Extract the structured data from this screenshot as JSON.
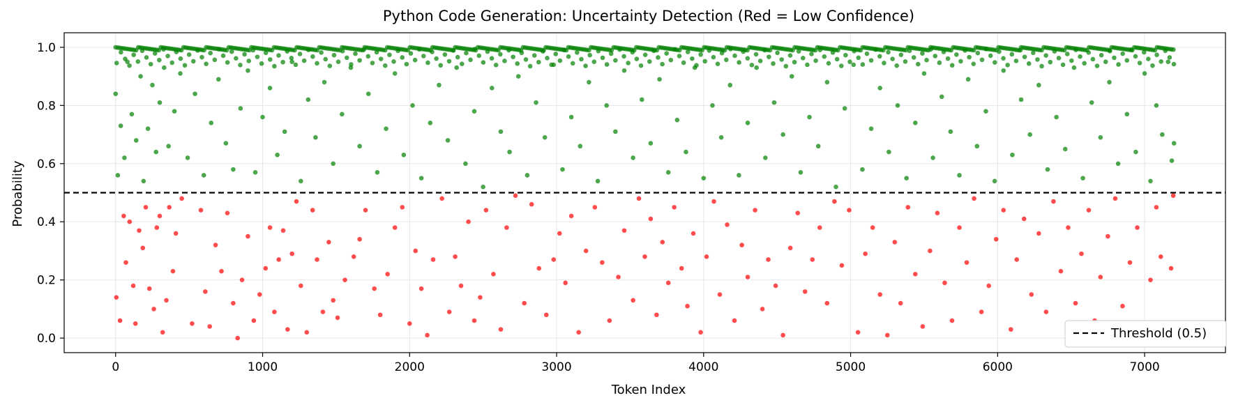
{
  "chart_data": {
    "type": "scatter",
    "title": "Python Code Generation: Uncertainty Detection (Red = Low Confidence)",
    "xlabel": "Token Index",
    "ylabel": "Probability",
    "xlim": [
      -350,
      7550
    ],
    "ylim": [
      -0.05,
      1.05
    ],
    "xticks": [
      0,
      1000,
      2000,
      3000,
      4000,
      5000,
      6000,
      7000
    ],
    "xtick_labels": [
      "0",
      "1000",
      "2000",
      "3000",
      "4000",
      "5000",
      "6000",
      "7000"
    ],
    "yticks": [
      0.0,
      0.2,
      0.4,
      0.6,
      0.8,
      1.0
    ],
    "ytick_labels": [
      "0.0",
      "0.2",
      "0.4",
      "0.6",
      "0.8",
      "1.0"
    ],
    "grid": true,
    "threshold": 0.5,
    "legend": {
      "placement": "lower-right",
      "entries": [
        "Threshold (0.5)"
      ]
    },
    "colors": {
      "high": "#008000",
      "low": "#ff0000",
      "threshold": "#000000"
    },
    "series": [
      {
        "color": "#ff0000",
        "points": [
          [
            5,
            0.14
          ],
          [
            30,
            0.06
          ],
          [
            55,
            0.42
          ],
          [
            70,
            0.26
          ],
          [
            95,
            0.4
          ],
          [
            120,
            0.18
          ],
          [
            135,
            0.05
          ],
          [
            160,
            0.37
          ],
          [
            185,
            0.31
          ],
          [
            205,
            0.45
          ],
          [
            230,
            0.17
          ],
          [
            260,
            0.1
          ],
          [
            280,
            0.38
          ],
          [
            300,
            0.42
          ],
          [
            320,
            0.02
          ],
          [
            345,
            0.13
          ],
          [
            365,
            0.45
          ],
          [
            390,
            0.23
          ],
          [
            410,
            0.36
          ],
          [
            450,
            0.48
          ],
          [
            520,
            0.05
          ],
          [
            580,
            0.44
          ],
          [
            610,
            0.16
          ],
          [
            640,
            0.04
          ],
          [
            680,
            0.32
          ],
          [
            720,
            0.23
          ],
          [
            760,
            0.43
          ],
          [
            800,
            0.12
          ],
          [
            830,
            0.0
          ],
          [
            860,
            0.2
          ],
          [
            900,
            0.35
          ],
          [
            940,
            0.06
          ],
          [
            980,
            0.15
          ],
          [
            1020,
            0.24
          ],
          [
            1050,
            0.38
          ],
          [
            1080,
            0.09
          ],
          [
            1110,
            0.27
          ],
          [
            1140,
            0.37
          ],
          [
            1170,
            0.03
          ],
          [
            1200,
            0.29
          ],
          [
            1230,
            0.47
          ],
          [
            1260,
            0.18
          ],
          [
            1300,
            0.02
          ],
          [
            1340,
            0.44
          ],
          [
            1370,
            0.27
          ],
          [
            1410,
            0.09
          ],
          [
            1450,
            0.33
          ],
          [
            1480,
            0.13
          ],
          [
            1510,
            0.07
          ],
          [
            1560,
            0.2
          ],
          [
            1620,
            0.28
          ],
          [
            1660,
            0.34
          ],
          [
            1700,
            0.44
          ],
          [
            1760,
            0.17
          ],
          [
            1800,
            0.08
          ],
          [
            1850,
            0.22
          ],
          [
            1900,
            0.38
          ],
          [
            1950,
            0.45
          ],
          [
            2000,
            0.05
          ],
          [
            2040,
            0.3
          ],
          [
            2080,
            0.17
          ],
          [
            2120,
            0.01
          ],
          [
            2160,
            0.27
          ],
          [
            2220,
            0.48
          ],
          [
            2270,
            0.09
          ],
          [
            2310,
            0.28
          ],
          [
            2350,
            0.18
          ],
          [
            2400,
            0.4
          ],
          [
            2440,
            0.06
          ],
          [
            2480,
            0.14
          ],
          [
            2520,
            0.44
          ],
          [
            2570,
            0.22
          ],
          [
            2620,
            0.03
          ],
          [
            2660,
            0.38
          ],
          [
            2720,
            0.49
          ],
          [
            2780,
            0.12
          ],
          [
            2830,
            0.46
          ],
          [
            2880,
            0.24
          ],
          [
            2930,
            0.08
          ],
          [
            2980,
            0.27
          ],
          [
            3020,
            0.36
          ],
          [
            3060,
            0.19
          ],
          [
            3100,
            0.42
          ],
          [
            3150,
            0.02
          ],
          [
            3200,
            0.3
          ],
          [
            3260,
            0.45
          ],
          [
            3310,
            0.26
          ],
          [
            3360,
            0.06
          ],
          [
            3420,
            0.21
          ],
          [
            3460,
            0.37
          ],
          [
            3520,
            0.13
          ],
          [
            3560,
            0.48
          ],
          [
            3600,
            0.28
          ],
          [
            3640,
            0.41
          ],
          [
            3680,
            0.08
          ],
          [
            3720,
            0.33
          ],
          [
            3760,
            0.19
          ],
          [
            3800,
            0.45
          ],
          [
            3850,
            0.24
          ],
          [
            3890,
            0.11
          ],
          [
            3930,
            0.36
          ],
          [
            3980,
            0.02
          ],
          [
            4020,
            0.28
          ],
          [
            4070,
            0.47
          ],
          [
            4110,
            0.15
          ],
          [
            4160,
            0.39
          ],
          [
            4210,
            0.06
          ],
          [
            4260,
            0.32
          ],
          [
            4300,
            0.21
          ],
          [
            4350,
            0.44
          ],
          [
            4400,
            0.1
          ],
          [
            4440,
            0.27
          ],
          [
            4490,
            0.18
          ],
          [
            4540,
            0.01
          ],
          [
            4590,
            0.31
          ],
          [
            4640,
            0.43
          ],
          [
            4690,
            0.16
          ],
          [
            4740,
            0.27
          ],
          [
            4790,
            0.38
          ],
          [
            4840,
            0.12
          ],
          [
            4890,
            0.47
          ],
          [
            4940,
            0.25
          ],
          [
            4990,
            0.44
          ],
          [
            5050,
            0.02
          ],
          [
            5100,
            0.29
          ],
          [
            5150,
            0.38
          ],
          [
            5200,
            0.15
          ],
          [
            5250,
            0.01
          ],
          [
            5300,
            0.33
          ],
          [
            5340,
            0.12
          ],
          [
            5390,
            0.45
          ],
          [
            5440,
            0.22
          ],
          [
            5490,
            0.04
          ],
          [
            5540,
            0.3
          ],
          [
            5590,
            0.43
          ],
          [
            5640,
            0.19
          ],
          [
            5690,
            0.06
          ],
          [
            5740,
            0.38
          ],
          [
            5790,
            0.26
          ],
          [
            5840,
            0.48
          ],
          [
            5890,
            0.09
          ],
          [
            5940,
            0.18
          ],
          [
            5990,
            0.34
          ],
          [
            6040,
            0.44
          ],
          [
            6090,
            0.03
          ],
          [
            6130,
            0.27
          ],
          [
            6180,
            0.41
          ],
          [
            6230,
            0.15
          ],
          [
            6280,
            0.36
          ],
          [
            6330,
            0.09
          ],
          [
            6380,
            0.47
          ],
          [
            6430,
            0.23
          ],
          [
            6480,
            0.38
          ],
          [
            6530,
            0.12
          ],
          [
            6570,
            0.29
          ],
          [
            6620,
            0.44
          ],
          [
            6660,
            0.06
          ],
          [
            6700,
            0.21
          ],
          [
            6750,
            0.35
          ],
          [
            6800,
            0.48
          ],
          [
            6850,
            0.11
          ],
          [
            6900,
            0.26
          ],
          [
            6950,
            0.38
          ],
          [
            7000,
            0.04
          ],
          [
            7040,
            0.2
          ],
          [
            7080,
            0.45
          ],
          [
            7110,
            0.28
          ],
          [
            7150,
            0.01
          ],
          [
            7180,
            0.24
          ],
          [
            7195,
            0.49
          ]
        ]
      },
      {
        "color": "#008000",
        "points": [
          [
            0,
            0.84
          ],
          [
            15,
            0.56
          ],
          [
            35,
            0.73
          ],
          [
            60,
            0.62
          ],
          [
            80,
            0.95
          ],
          [
            110,
            0.77
          ],
          [
            140,
            0.68
          ],
          [
            170,
            0.9
          ],
          [
            190,
            0.54
          ],
          [
            220,
            0.72
          ],
          [
            250,
            0.87
          ],
          [
            275,
            0.64
          ],
          [
            300,
            0.81
          ],
          [
            330,
            0.93
          ],
          [
            360,
            0.66
          ],
          [
            400,
            0.78
          ],
          [
            440,
            0.91
          ],
          [
            490,
            0.62
          ],
          [
            540,
            0.84
          ],
          [
            600,
            0.56
          ],
          [
            650,
            0.74
          ],
          [
            700,
            0.89
          ],
          [
            750,
            0.67
          ],
          [
            800,
            0.58
          ],
          [
            850,
            0.79
          ],
          [
            900,
            0.92
          ],
          [
            950,
            0.57
          ],
          [
            1000,
            0.76
          ],
          [
            1050,
            0.86
          ],
          [
            1100,
            0.63
          ],
          [
            1150,
            0.71
          ],
          [
            1200,
            0.95
          ],
          [
            1260,
            0.54
          ],
          [
            1310,
            0.82
          ],
          [
            1360,
            0.69
          ],
          [
            1420,
            0.88
          ],
          [
            1480,
            0.6
          ],
          [
            1540,
            0.77
          ],
          [
            1600,
            0.93
          ],
          [
            1660,
            0.66
          ],
          [
            1720,
            0.84
          ],
          [
            1780,
            0.57
          ],
          [
            1840,
            0.72
          ],
          [
            1900,
            0.91
          ],
          [
            1960,
            0.63
          ],
          [
            2020,
            0.8
          ],
          [
            2080,
            0.55
          ],
          [
            2140,
            0.74
          ],
          [
            2200,
            0.87
          ],
          [
            2260,
            0.68
          ],
          [
            2320,
            0.93
          ],
          [
            2380,
            0.6
          ],
          [
            2440,
            0.78
          ],
          [
            2500,
            0.52
          ],
          [
            2560,
            0.86
          ],
          [
            2620,
            0.71
          ],
          [
            2680,
            0.64
          ],
          [
            2740,
            0.9
          ],
          [
            2800,
            0.56
          ],
          [
            2860,
            0.81
          ],
          [
            2920,
            0.69
          ],
          [
            2980,
            0.94
          ],
          [
            3040,
            0.58
          ],
          [
            3100,
            0.76
          ],
          [
            3160,
            0.66
          ],
          [
            3220,
            0.88
          ],
          [
            3280,
            0.54
          ],
          [
            3340,
            0.8
          ],
          [
            3400,
            0.71
          ],
          [
            3460,
            0.92
          ],
          [
            3520,
            0.62
          ],
          [
            3580,
            0.82
          ],
          [
            3640,
            0.67
          ],
          [
            3700,
            0.89
          ],
          [
            3760,
            0.57
          ],
          [
            3820,
            0.75
          ],
          [
            3880,
            0.64
          ],
          [
            3940,
            0.93
          ],
          [
            4000,
            0.55
          ],
          [
            4060,
            0.8
          ],
          [
            4120,
            0.69
          ],
          [
            4180,
            0.87
          ],
          [
            4240,
            0.56
          ],
          [
            4300,
            0.74
          ],
          [
            4360,
            0.93
          ],
          [
            4420,
            0.62
          ],
          [
            4480,
            0.81
          ],
          [
            4540,
            0.7
          ],
          [
            4600,
            0.9
          ],
          [
            4660,
            0.57
          ],
          [
            4720,
            0.76
          ],
          [
            4780,
            0.66
          ],
          [
            4840,
            0.88
          ],
          [
            4900,
            0.52
          ],
          [
            4960,
            0.79
          ],
          [
            5020,
            0.94
          ],
          [
            5080,
            0.58
          ],
          [
            5140,
            0.72
          ],
          [
            5200,
            0.86
          ],
          [
            5260,
            0.64
          ],
          [
            5320,
            0.8
          ],
          [
            5380,
            0.55
          ],
          [
            5440,
            0.74
          ],
          [
            5500,
            0.91
          ],
          [
            5560,
            0.62
          ],
          [
            5620,
            0.83
          ],
          [
            5680,
            0.71
          ],
          [
            5740,
            0.56
          ],
          [
            5800,
            0.89
          ],
          [
            5860,
            0.66
          ],
          [
            5920,
            0.78
          ],
          [
            5980,
            0.54
          ],
          [
            6040,
            0.92
          ],
          [
            6100,
            0.63
          ],
          [
            6160,
            0.82
          ],
          [
            6220,
            0.7
          ],
          [
            6280,
            0.87
          ],
          [
            6340,
            0.58
          ],
          [
            6400,
            0.76
          ],
          [
            6460,
            0.65
          ],
          [
            6520,
            0.93
          ],
          [
            6580,
            0.55
          ],
          [
            6640,
            0.81
          ],
          [
            6700,
            0.69
          ],
          [
            6760,
            0.88
          ],
          [
            6820,
            0.6
          ],
          [
            6880,
            0.77
          ],
          [
            6940,
            0.64
          ],
          [
            7000,
            0.91
          ],
          [
            7040,
            0.54
          ],
          [
            7080,
            0.8
          ],
          [
            7120,
            0.7
          ],
          [
            7160,
            0.95
          ],
          [
            7185,
            0.61
          ],
          [
            7200,
            0.67
          ]
        ]
      }
    ]
  }
}
